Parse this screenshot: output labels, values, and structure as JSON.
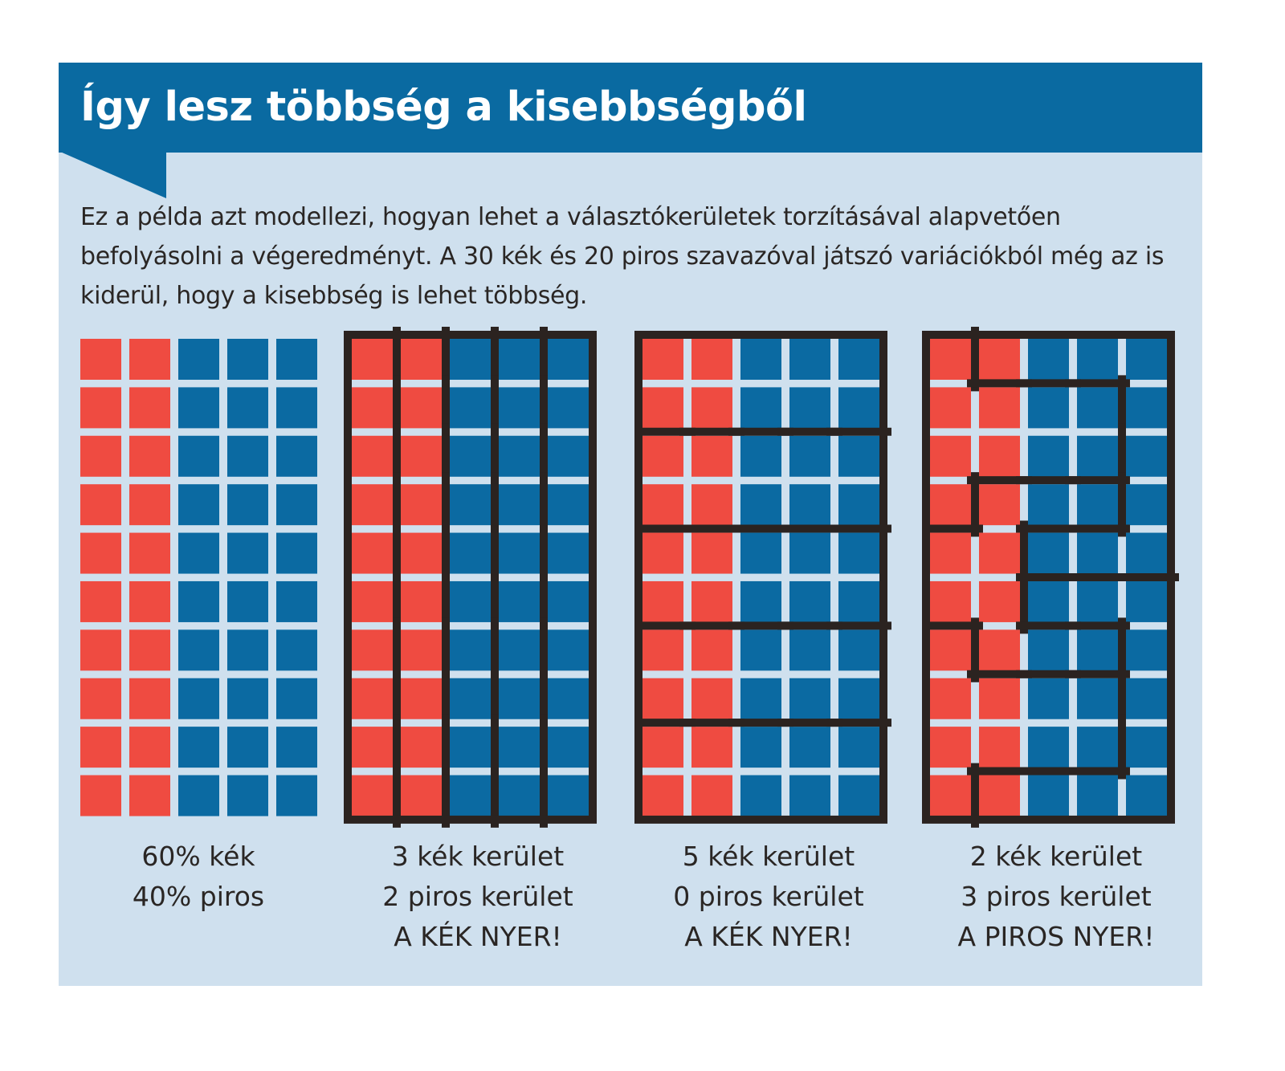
{
  "title": "Így lesz többség a kisebbségből",
  "intro": "Ez a példa azt modellezi, hogyan lehet a választókerületek torzításával alapvetően befolyásolni a végeredményt. A 30 kék és 20 piros szavazóval játszó variációkból még az is kiderül, hogy a kisebbség is lehet többség.",
  "colors": {
    "header": "#0a6aa1",
    "background": "#cfe0ee",
    "red": "#ef4b41",
    "blue": "#0b6aa2",
    "border": "#2b2320"
  },
  "voters": {
    "columns": [
      "red",
      "red",
      "blue",
      "blue",
      "blue"
    ],
    "rows": 10
  },
  "panels": [
    {
      "districts": null,
      "caption": [
        "60% kék",
        "40% piros"
      ]
    },
    {
      "districts": [
        [
          1,
          2,
          3,
          4,
          5
        ],
        [
          1,
          2,
          3,
          4,
          5
        ],
        [
          1,
          2,
          3,
          4,
          5
        ],
        [
          1,
          2,
          3,
          4,
          5
        ],
        [
          1,
          2,
          3,
          4,
          5
        ],
        [
          1,
          2,
          3,
          4,
          5
        ],
        [
          1,
          2,
          3,
          4,
          5
        ],
        [
          1,
          2,
          3,
          4,
          5
        ],
        [
          1,
          2,
          3,
          4,
          5
        ],
        [
          1,
          2,
          3,
          4,
          5
        ]
      ],
      "caption": [
        "3 kék kerület",
        "2 piros kerület",
        "A KÉK NYER!"
      ]
    },
    {
      "districts": [
        [
          1,
          1,
          1,
          1,
          1
        ],
        [
          1,
          1,
          1,
          1,
          1
        ],
        [
          2,
          2,
          2,
          2,
          2
        ],
        [
          2,
          2,
          2,
          2,
          2
        ],
        [
          3,
          3,
          3,
          3,
          3
        ],
        [
          3,
          3,
          3,
          3,
          3
        ],
        [
          4,
          4,
          4,
          4,
          4
        ],
        [
          4,
          4,
          4,
          4,
          4
        ],
        [
          5,
          5,
          5,
          5,
          5
        ],
        [
          5,
          5,
          5,
          5,
          5
        ]
      ],
      "caption": [
        "5 kék kerület",
        "0 piros kerület",
        "A KÉK NYER!"
      ]
    },
    {
      "districts": [
        [
          1,
          2,
          2,
          2,
          2
        ],
        [
          1,
          1,
          1,
          1,
          2
        ],
        [
          1,
          1,
          1,
          1,
          2
        ],
        [
          1,
          3,
          3,
          3,
          2
        ],
        [
          3,
          3,
          2,
          2,
          2
        ],
        [
          3,
          3,
          4,
          4,
          4
        ],
        [
          5,
          3,
          3,
          3,
          4
        ],
        [
          5,
          5,
          5,
          5,
          4
        ],
        [
          5,
          5,
          5,
          5,
          4
        ],
        [
          5,
          4,
          4,
          4,
          4
        ]
      ],
      "caption": [
        "2 kék kerület",
        "3 piros kerület",
        "A PIROS NYER!"
      ]
    }
  ]
}
